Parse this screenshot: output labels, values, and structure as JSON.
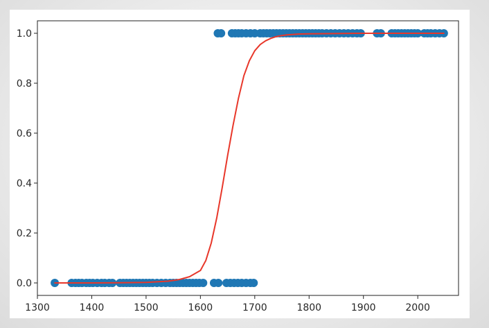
{
  "chart_data": {
    "type": "scatter",
    "title": "",
    "xlabel": "",
    "ylabel": "",
    "xlim": [
      1300,
      2075
    ],
    "ylim": [
      -0.05,
      1.05
    ],
    "x_ticks": [
      1300,
      1400,
      1500,
      1600,
      1700,
      1800,
      1900,
      2000
    ],
    "y_ticks": [
      0.0,
      0.2,
      0.4,
      0.6,
      0.8,
      1.0
    ],
    "x_tick_labels": [
      "1300",
      "1400",
      "1500",
      "1600",
      "1700",
      "1800",
      "1900",
      "2000"
    ],
    "y_tick_labels": [
      "0.0",
      "0.2",
      "0.4",
      "0.6",
      "0.8",
      "1.0"
    ],
    "grid": false,
    "legend": "none",
    "series": [
      {
        "kind": "scatter",
        "color": "#1f77b4",
        "points": [
          {
            "x": 1332,
            "y": 0
          },
          {
            "x": 1363,
            "y": 0
          },
          {
            "x": 1370,
            "y": 0
          },
          {
            "x": 1376,
            "y": 0
          },
          {
            "x": 1382,
            "y": 0
          },
          {
            "x": 1390,
            "y": 0
          },
          {
            "x": 1396,
            "y": 0
          },
          {
            "x": 1402,
            "y": 0
          },
          {
            "x": 1410,
            "y": 0
          },
          {
            "x": 1418,
            "y": 0
          },
          {
            "x": 1424,
            "y": 0
          },
          {
            "x": 1432,
            "y": 0
          },
          {
            "x": 1438,
            "y": 0
          },
          {
            "x": 1452,
            "y": 0
          },
          {
            "x": 1458,
            "y": 0
          },
          {
            "x": 1464,
            "y": 0
          },
          {
            "x": 1470,
            "y": 0
          },
          {
            "x": 1476,
            "y": 0
          },
          {
            "x": 1482,
            "y": 0
          },
          {
            "x": 1488,
            "y": 0
          },
          {
            "x": 1494,
            "y": 0
          },
          {
            "x": 1500,
            "y": 0
          },
          {
            "x": 1506,
            "y": 0
          },
          {
            "x": 1512,
            "y": 0
          },
          {
            "x": 1520,
            "y": 0
          },
          {
            "x": 1528,
            "y": 0
          },
          {
            "x": 1536,
            "y": 0
          },
          {
            "x": 1544,
            "y": 0
          },
          {
            "x": 1550,
            "y": 0
          },
          {
            "x": 1556,
            "y": 0
          },
          {
            "x": 1562,
            "y": 0
          },
          {
            "x": 1568,
            "y": 0
          },
          {
            "x": 1574,
            "y": 0
          },
          {
            "x": 1580,
            "y": 0
          },
          {
            "x": 1586,
            "y": 0
          },
          {
            "x": 1592,
            "y": 0
          },
          {
            "x": 1598,
            "y": 0
          },
          {
            "x": 1605,
            "y": 0
          },
          {
            "x": 1625,
            "y": 0
          },
          {
            "x": 1633,
            "y": 0
          },
          {
            "x": 1648,
            "y": 0
          },
          {
            "x": 1655,
            "y": 0
          },
          {
            "x": 1662,
            "y": 0
          },
          {
            "x": 1669,
            "y": 0
          },
          {
            "x": 1676,
            "y": 0
          },
          {
            "x": 1684,
            "y": 0
          },
          {
            "x": 1692,
            "y": 0
          },
          {
            "x": 1698,
            "y": 0
          },
          {
            "x": 1632,
            "y": 1
          },
          {
            "x": 1638,
            "y": 1
          },
          {
            "x": 1658,
            "y": 1
          },
          {
            "x": 1664,
            "y": 1
          },
          {
            "x": 1670,
            "y": 1
          },
          {
            "x": 1676,
            "y": 1
          },
          {
            "x": 1684,
            "y": 1
          },
          {
            "x": 1692,
            "y": 1
          },
          {
            "x": 1700,
            "y": 1
          },
          {
            "x": 1710,
            "y": 1
          },
          {
            "x": 1716,
            "y": 1
          },
          {
            "x": 1722,
            "y": 1
          },
          {
            "x": 1728,
            "y": 1
          },
          {
            "x": 1734,
            "y": 1
          },
          {
            "x": 1740,
            "y": 1
          },
          {
            "x": 1746,
            "y": 1
          },
          {
            "x": 1752,
            "y": 1
          },
          {
            "x": 1758,
            "y": 1
          },
          {
            "x": 1764,
            "y": 1
          },
          {
            "x": 1770,
            "y": 1
          },
          {
            "x": 1776,
            "y": 1
          },
          {
            "x": 1782,
            "y": 1
          },
          {
            "x": 1788,
            "y": 1
          },
          {
            "x": 1794,
            "y": 1
          },
          {
            "x": 1800,
            "y": 1
          },
          {
            "x": 1806,
            "y": 1
          },
          {
            "x": 1812,
            "y": 1
          },
          {
            "x": 1818,
            "y": 1
          },
          {
            "x": 1824,
            "y": 1
          },
          {
            "x": 1832,
            "y": 1
          },
          {
            "x": 1840,
            "y": 1
          },
          {
            "x": 1848,
            "y": 1
          },
          {
            "x": 1856,
            "y": 1
          },
          {
            "x": 1864,
            "y": 1
          },
          {
            "x": 1872,
            "y": 1
          },
          {
            "x": 1880,
            "y": 1
          },
          {
            "x": 1888,
            "y": 1
          },
          {
            "x": 1895,
            "y": 1
          },
          {
            "x": 1925,
            "y": 1
          },
          {
            "x": 1932,
            "y": 1
          },
          {
            "x": 1952,
            "y": 1
          },
          {
            "x": 1958,
            "y": 1
          },
          {
            "x": 1964,
            "y": 1
          },
          {
            "x": 1970,
            "y": 1
          },
          {
            "x": 1976,
            "y": 1
          },
          {
            "x": 1982,
            "y": 1
          },
          {
            "x": 1988,
            "y": 1
          },
          {
            "x": 1994,
            "y": 1
          },
          {
            "x": 2000,
            "y": 1
          },
          {
            "x": 2012,
            "y": 1
          },
          {
            "x": 2018,
            "y": 1
          },
          {
            "x": 2024,
            "y": 1
          },
          {
            "x": 2032,
            "y": 1
          },
          {
            "x": 2040,
            "y": 1
          },
          {
            "x": 2048,
            "y": 1
          }
        ]
      },
      {
        "kind": "line",
        "color": "#e8372a",
        "x": [
          1332,
          1400,
          1450,
          1500,
          1540,
          1560,
          1580,
          1600,
          1610,
          1620,
          1630,
          1640,
          1650,
          1660,
          1670,
          1680,
          1690,
          1700,
          1710,
          1720,
          1730,
          1740,
          1750,
          1760,
          1780,
          1800,
          1850,
          1900,
          1950,
          2000,
          2048
        ],
        "y": [
          0.0,
          0.0,
          0.0005,
          0.002,
          0.007,
          0.013,
          0.025,
          0.05,
          0.09,
          0.16,
          0.26,
          0.38,
          0.51,
          0.63,
          0.74,
          0.83,
          0.89,
          0.93,
          0.955,
          0.97,
          0.98,
          0.987,
          0.991,
          0.994,
          0.997,
          0.998,
          0.999,
          1.0,
          1.0,
          1.0,
          1.0
        ]
      }
    ]
  }
}
